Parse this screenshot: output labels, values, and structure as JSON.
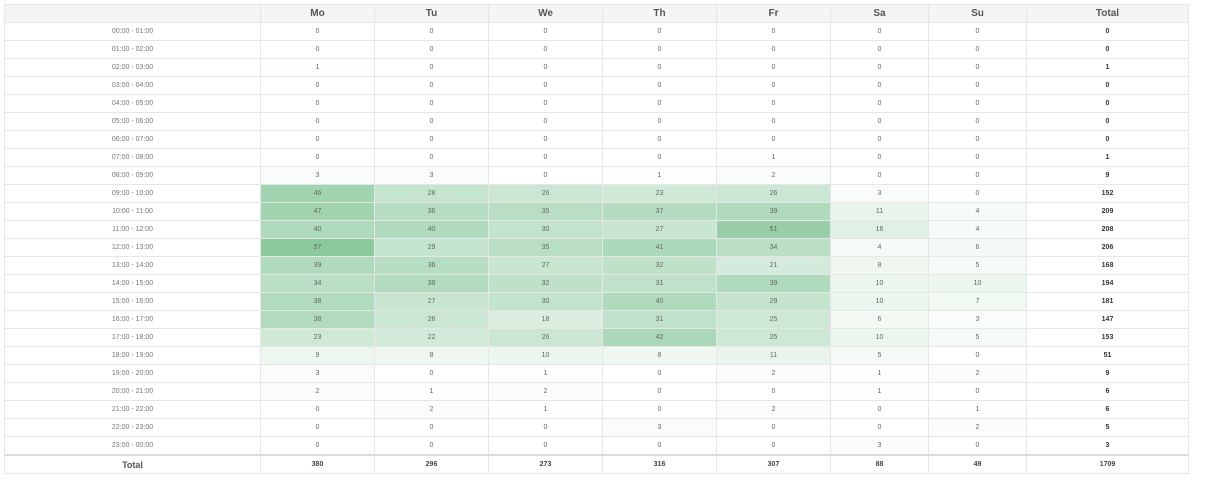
{
  "table": {
    "columns": [
      "",
      "Mo",
      "Tu",
      "We",
      "Th",
      "Fr",
      "Sa",
      "Su",
      "Total"
    ],
    "heat_color": "#2e9e4e",
    "max_value": 57,
    "rows": [
      {
        "hour": "00:00 - 01:00",
        "values": [
          0,
          0,
          0,
          0,
          0,
          0,
          0
        ],
        "total": 0
      },
      {
        "hour": "01:00 - 02:00",
        "values": [
          0,
          0,
          0,
          0,
          0,
          0,
          0
        ],
        "total": 0
      },
      {
        "hour": "02:00 - 03:00",
        "values": [
          1,
          0,
          0,
          0,
          0,
          0,
          0
        ],
        "total": 1
      },
      {
        "hour": "03:00 - 04:00",
        "values": [
          0,
          0,
          0,
          0,
          0,
          0,
          0
        ],
        "total": 0
      },
      {
        "hour": "04:00 - 05:00",
        "values": [
          0,
          0,
          0,
          0,
          0,
          0,
          0
        ],
        "total": 0
      },
      {
        "hour": "05:00 - 06:00",
        "values": [
          0,
          0,
          0,
          0,
          0,
          0,
          0
        ],
        "total": 0
      },
      {
        "hour": "06:00 - 07:00",
        "values": [
          0,
          0,
          0,
          0,
          0,
          0,
          0
        ],
        "total": 0
      },
      {
        "hour": "07:00 - 08:00",
        "values": [
          0,
          0,
          0,
          0,
          1,
          0,
          0
        ],
        "total": 1
      },
      {
        "hour": "08:00 - 09:00",
        "values": [
          3,
          3,
          0,
          1,
          2,
          0,
          0
        ],
        "total": 9
      },
      {
        "hour": "09:00 - 10:00",
        "values": [
          46,
          28,
          26,
          23,
          26,
          3,
          0
        ],
        "total": 152
      },
      {
        "hour": "10:00 - 11:00",
        "values": [
          47,
          36,
          35,
          37,
          39,
          11,
          4
        ],
        "total": 209
      },
      {
        "hour": "11:00 - 12:00",
        "values": [
          40,
          40,
          30,
          27,
          51,
          16,
          4
        ],
        "total": 208
      },
      {
        "hour": "12:00 - 13:00",
        "values": [
          57,
          29,
          35,
          41,
          34,
          4,
          6
        ],
        "total": 206
      },
      {
        "hour": "13:00 - 14:00",
        "values": [
          39,
          36,
          27,
          32,
          21,
          8,
          5
        ],
        "total": 168
      },
      {
        "hour": "14:00 - 15:00",
        "values": [
          34,
          38,
          32,
          31,
          39,
          10,
          10
        ],
        "total": 194
      },
      {
        "hour": "15:00 - 16:00",
        "values": [
          38,
          27,
          30,
          40,
          29,
          10,
          7
        ],
        "total": 181
      },
      {
        "hour": "16:00 - 17:00",
        "values": [
          38,
          26,
          18,
          31,
          25,
          6,
          3
        ],
        "total": 147
      },
      {
        "hour": "17:00 - 18:00",
        "values": [
          23,
          22,
          26,
          42,
          25,
          10,
          5
        ],
        "total": 153
      },
      {
        "hour": "18:00 - 19:00",
        "values": [
          9,
          8,
          10,
          8,
          11,
          5,
          0
        ],
        "total": 51
      },
      {
        "hour": "19:00 - 20:00",
        "values": [
          3,
          0,
          1,
          0,
          2,
          1,
          2
        ],
        "total": 9
      },
      {
        "hour": "20:00 - 21:00",
        "values": [
          2,
          1,
          2,
          0,
          0,
          1,
          0
        ],
        "total": 6
      },
      {
        "hour": "21:00 - 22:00",
        "values": [
          0,
          2,
          1,
          0,
          2,
          0,
          1
        ],
        "total": 6
      },
      {
        "hour": "22:00 - 23:00",
        "values": [
          0,
          0,
          0,
          3,
          0,
          0,
          2
        ],
        "total": 5
      },
      {
        "hour": "23:00 - 00:00",
        "values": [
          0,
          0,
          0,
          0,
          0,
          3,
          0
        ],
        "total": 3
      }
    ],
    "footer": {
      "label": "Total",
      "values": [
        380,
        296,
        273,
        316,
        307,
        88,
        49
      ],
      "total": 1709
    }
  }
}
